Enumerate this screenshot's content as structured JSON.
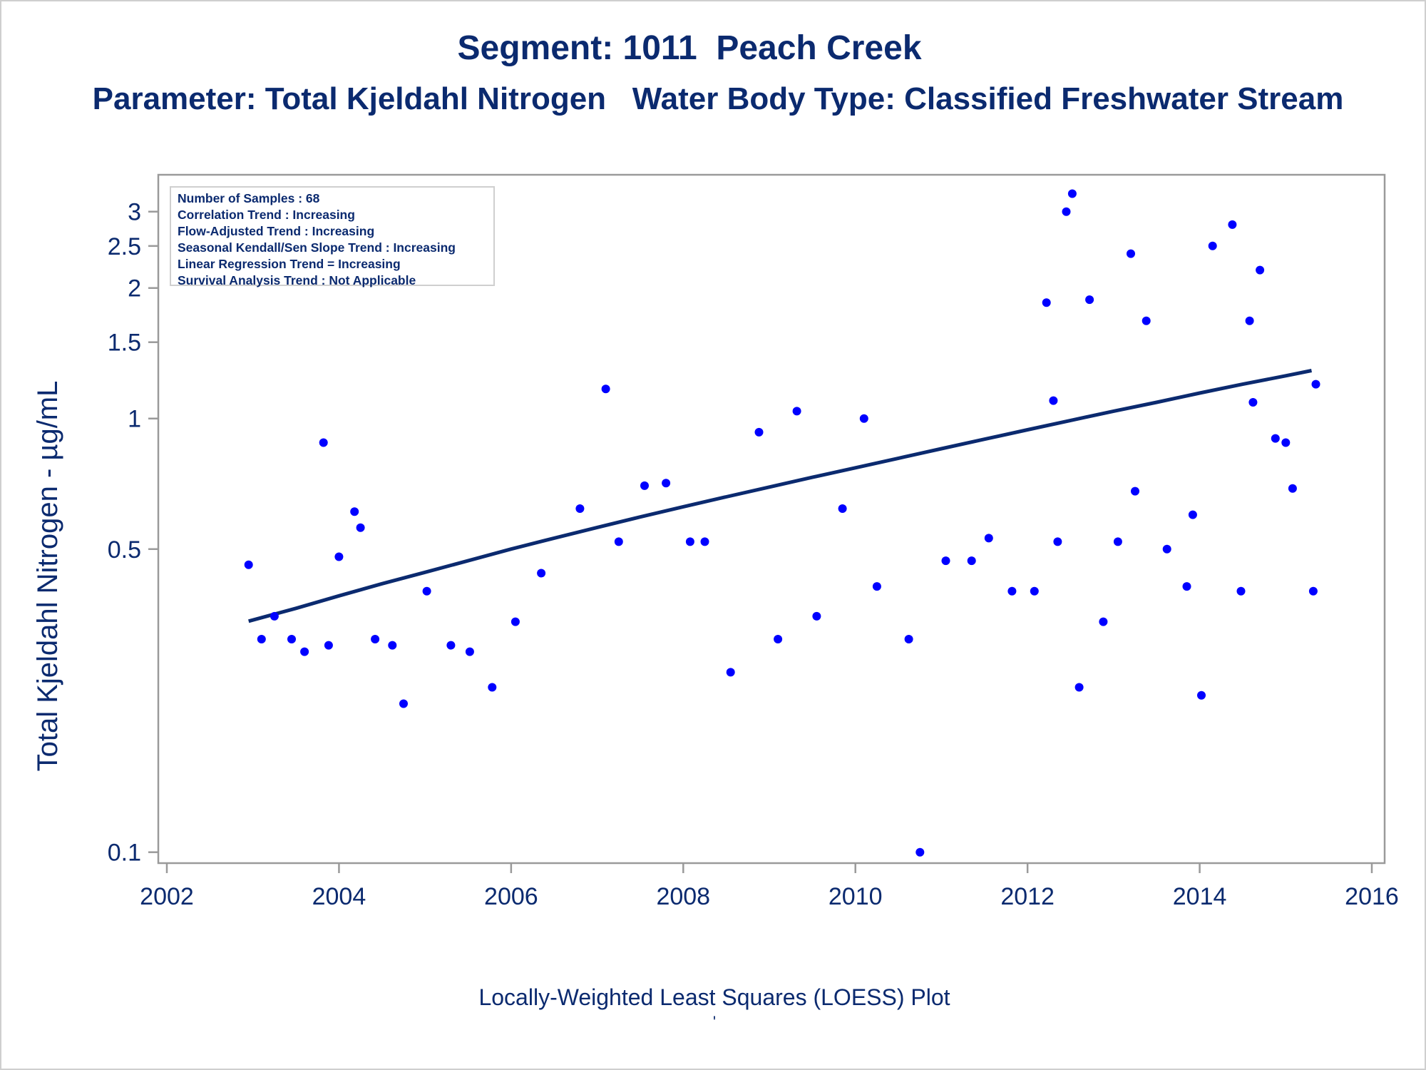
{
  "title": "Segment: 1011  Peach Creek",
  "subtitle": "Parameter: Total Kjeldahl Nitrogen   Water Body Type: Classified Freshwater Stream",
  "caption": "Locally-Weighted Least Squares (LOESS) Plot",
  "caption_mark": "'",
  "stats_box": [
    "Number of Samples : 68",
    "Correlation Trend : Increasing",
    "Flow-Adjusted Trend : Increasing",
    "Seasonal Kendall/Sen Slope Trend : Increasing",
    "Linear Regression Trend = Increasing",
    "Survival Analysis Trend : Not Applicable"
  ],
  "colors": {
    "text": "#0b2a6f",
    "points": "#0000ff",
    "trend_line": "#0b2a6f",
    "frame": "#9a9a9a"
  },
  "chart_data": {
    "type": "scatter",
    "title": "Segment: 1011  Peach Creek",
    "subtitle": "Parameter: Total Kjeldahl Nitrogen   Water Body Type: Classified Freshwater Stream",
    "xlabel": "",
    "ylabel": "Total Kjeldahl Nitrogen -  µg/mL",
    "y_scale": "log",
    "xlim": [
      2002,
      2016
    ],
    "ylim": [
      0.098,
      3.5
    ],
    "x_ticks": [
      2002,
      2004,
      2006,
      2008,
      2010,
      2012,
      2014,
      2016
    ],
    "y_ticks": [
      0.1,
      0.5,
      1,
      1.5,
      2,
      2.5,
      3
    ],
    "y_tick_labels": [
      "0.1",
      "0.5",
      "1",
      "1.5",
      "2",
      "2.5",
      "3"
    ],
    "grid": false,
    "legend": "top-left",
    "series": [
      {
        "kind": "points",
        "values": [
          [
            2002.95,
            0.46
          ],
          [
            2003.1,
            0.31
          ],
          [
            2003.25,
            0.35
          ],
          [
            2003.45,
            0.31
          ],
          [
            2003.6,
            0.29
          ],
          [
            2003.82,
            0.88
          ],
          [
            2003.88,
            0.3
          ],
          [
            2004.0,
            0.48
          ],
          [
            2004.18,
            0.61
          ],
          [
            2004.25,
            0.56
          ],
          [
            2004.42,
            0.31
          ],
          [
            2004.62,
            0.3
          ],
          [
            2004.75,
            0.22
          ],
          [
            2005.02,
            0.4
          ],
          [
            2005.3,
            0.3
          ],
          [
            2005.52,
            0.29
          ],
          [
            2005.78,
            0.24
          ],
          [
            2006.05,
            0.34
          ],
          [
            2006.35,
            0.44
          ],
          [
            2006.8,
            0.62
          ],
          [
            2007.1,
            1.17
          ],
          [
            2007.25,
            0.52
          ],
          [
            2007.55,
            0.7
          ],
          [
            2007.8,
            0.71
          ],
          [
            2008.08,
            0.52
          ],
          [
            2008.25,
            0.52
          ],
          [
            2008.55,
            0.26
          ],
          [
            2008.88,
            0.93
          ],
          [
            2009.1,
            0.31
          ],
          [
            2009.32,
            1.04
          ],
          [
            2009.55,
            0.35
          ],
          [
            2009.85,
            0.62
          ],
          [
            2010.1,
            1.0
          ],
          [
            2010.25,
            0.41
          ],
          [
            2010.62,
            0.31
          ],
          [
            2010.75,
            0.1
          ],
          [
            2011.05,
            0.47
          ],
          [
            2011.35,
            0.47
          ],
          [
            2011.55,
            0.53
          ],
          [
            2011.82,
            0.4
          ],
          [
            2012.08,
            0.4
          ],
          [
            2012.22,
            1.85
          ],
          [
            2012.3,
            1.1
          ],
          [
            2012.35,
            0.52
          ],
          [
            2012.45,
            3.0
          ],
          [
            2012.52,
            3.3
          ],
          [
            2012.6,
            0.24
          ],
          [
            2012.72,
            1.88
          ],
          [
            2012.88,
            0.34
          ],
          [
            2013.05,
            0.52
          ],
          [
            2013.2,
            2.4
          ],
          [
            2013.25,
            0.68
          ],
          [
            2013.38,
            1.68
          ],
          [
            2013.62,
            0.5
          ],
          [
            2013.85,
            0.41
          ],
          [
            2013.92,
            0.6
          ],
          [
            2014.02,
            0.23
          ],
          [
            2014.15,
            2.5
          ],
          [
            2014.38,
            2.8
          ],
          [
            2014.48,
            0.4
          ],
          [
            2014.58,
            1.68
          ],
          [
            2014.62,
            1.09
          ],
          [
            2014.7,
            2.2
          ],
          [
            2014.88,
            0.9
          ],
          [
            2015.0,
            0.88
          ],
          [
            2015.08,
            0.69
          ],
          [
            2015.32,
            0.4
          ],
          [
            2015.35,
            1.2
          ]
        ]
      },
      {
        "kind": "trend_line",
        "values": [
          [
            2002.95,
            0.341
          ],
          [
            2003.5,
            0.365
          ],
          [
            2004.0,
            0.39
          ],
          [
            2004.5,
            0.416
          ],
          [
            2005.0,
            0.442
          ],
          [
            2005.5,
            0.47
          ],
          [
            2006.0,
            0.5
          ],
          [
            2006.5,
            0.53
          ],
          [
            2007.0,
            0.561
          ],
          [
            2007.5,
            0.593
          ],
          [
            2008.0,
            0.626
          ],
          [
            2008.5,
            0.66
          ],
          [
            2009.0,
            0.695
          ],
          [
            2009.5,
            0.732
          ],
          [
            2010.0,
            0.77
          ],
          [
            2010.5,
            0.81
          ],
          [
            2011.0,
            0.852
          ],
          [
            2011.5,
            0.896
          ],
          [
            2012.0,
            0.942
          ],
          [
            2012.5,
            0.99
          ],
          [
            2013.0,
            1.04
          ],
          [
            2013.5,
            1.09
          ],
          [
            2014.0,
            1.145
          ],
          [
            2014.5,
            1.2
          ],
          [
            2015.0,
            1.255
          ],
          [
            2015.3,
            1.29
          ]
        ]
      }
    ]
  }
}
